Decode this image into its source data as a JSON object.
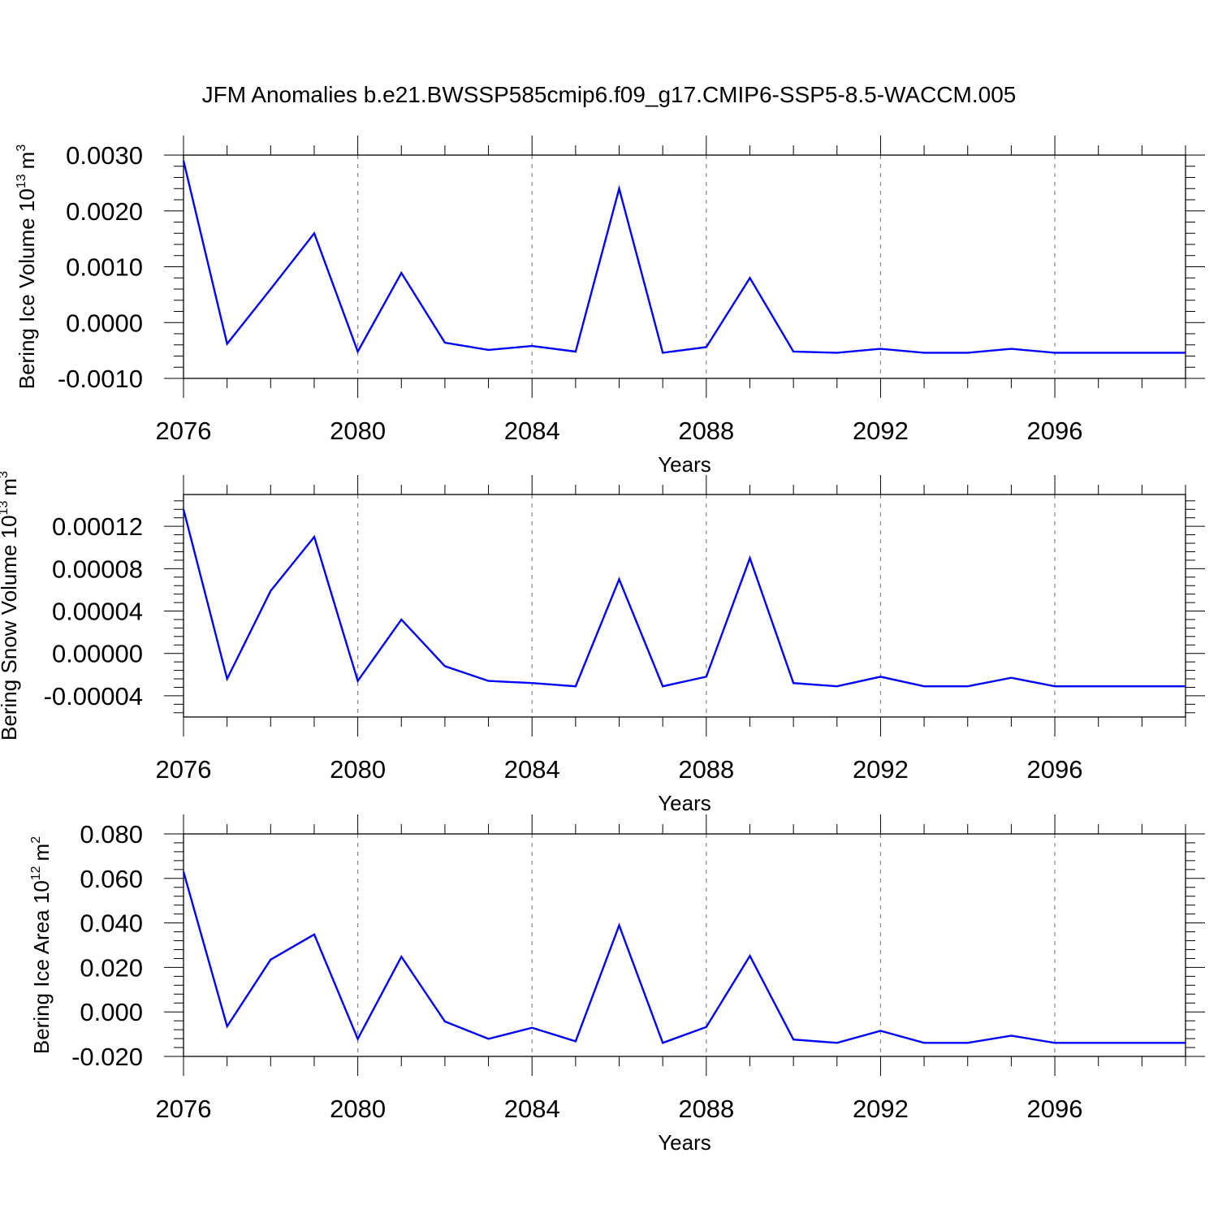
{
  "title": "JFM Anomalies b.e21.BWSSP585cmip6.f09_g17.CMIP6-SSP5-8.5-WACCM.005",
  "colors": {
    "series": "#0000ff",
    "axis": "#000000",
    "grid": "#888888"
  },
  "chart_data": [
    {
      "type": "line",
      "ylabel_main": "Bering Ice Volume 10",
      "ylabel_exp": "13",
      "ylabel_unit": "m",
      "ylabel_unit_exp": "3",
      "xlabel": "Years",
      "xlim": [
        2076,
        2099
      ],
      "ylim": [
        -0.001,
        0.003
      ],
      "x_ticks": [
        2076,
        2080,
        2084,
        2088,
        2092,
        2096
      ],
      "x_tick_labels": [
        "2076",
        "2080",
        "2084",
        "2088",
        "2092",
        "2096"
      ],
      "y_ticks": [
        -0.001,
        0.0,
        0.001,
        0.002,
        0.003
      ],
      "y_tick_labels": [
        "-0.0010",
        "0.0000",
        "0.0010",
        "0.0020",
        "0.0030"
      ],
      "x": [
        2076,
        2077,
        2078,
        2079,
        2080,
        2081,
        2082,
        2083,
        2084,
        2085,
        2086,
        2087,
        2088,
        2089,
        2090,
        2091,
        2092,
        2093,
        2094,
        2095,
        2096,
        2097,
        2098,
        2099
      ],
      "values": [
        0.0029,
        -0.00038,
        0.0006,
        0.0016,
        -0.00052,
        0.00089,
        -0.00036,
        -0.00049,
        -0.00042,
        -0.00052,
        0.0024,
        -0.00054,
        -0.00044,
        0.0008,
        -0.00052,
        -0.00054,
        -0.00047,
        -0.00054,
        -0.00054,
        -0.00047,
        -0.00054,
        -0.00054,
        -0.00054,
        -0.00054
      ]
    },
    {
      "type": "line",
      "ylabel_main": "Bering Snow Volume 10",
      "ylabel_exp": "13",
      "ylabel_unit": "m",
      "ylabel_unit_exp": "3",
      "xlabel": "Years",
      "xlim": [
        2076,
        2099
      ],
      "ylim": [
        -6e-05,
        0.00015
      ],
      "x_ticks": [
        2076,
        2080,
        2084,
        2088,
        2092,
        2096
      ],
      "x_tick_labels": [
        "2076",
        "2080",
        "2084",
        "2088",
        "2092",
        "2096"
      ],
      "y_ticks": [
        -4e-05,
        0.0,
        4e-05,
        8e-05,
        0.00012
      ],
      "y_tick_labels": [
        "-0.00004",
        "0.00000",
        "0.00004",
        "0.00008",
        "0.00012"
      ],
      "x": [
        2076,
        2077,
        2078,
        2079,
        2080,
        2081,
        2082,
        2083,
        2084,
        2085,
        2086,
        2087,
        2088,
        2089,
        2090,
        2091,
        2092,
        2093,
        2094,
        2095,
        2096,
        2097,
        2098,
        2099
      ],
      "values": [
        0.000136,
        -2.4e-05,
        5.9e-05,
        0.00011,
        -2.6e-05,
        3.2e-05,
        -1.2e-05,
        -2.6e-05,
        -2.8e-05,
        -3.1e-05,
        7e-05,
        -3.1e-05,
        -2.2e-05,
        9e-05,
        -2.8e-05,
        -3.1e-05,
        -2.2e-05,
        -3.1e-05,
        -3.1e-05,
        -2.3e-05,
        -3.1e-05,
        -3.1e-05,
        -3.1e-05,
        -3.1e-05
      ]
    },
    {
      "type": "line",
      "ylabel_main": "Bering Ice Area 10",
      "ylabel_exp": "12",
      "ylabel_unit": "m",
      "ylabel_unit_exp": "2",
      "xlabel": "Years",
      "xlim": [
        2076,
        2099
      ],
      "ylim": [
        -0.02,
        0.08
      ],
      "x_ticks": [
        2076,
        2080,
        2084,
        2088,
        2092,
        2096
      ],
      "x_tick_labels": [
        "2076",
        "2080",
        "2084",
        "2088",
        "2092",
        "2096"
      ],
      "y_ticks": [
        -0.02,
        0.0,
        0.02,
        0.04,
        0.06,
        0.08
      ],
      "y_tick_labels": [
        "-0.020",
        "0.000",
        "0.020",
        "0.040",
        "0.060",
        "0.080"
      ],
      "x": [
        2076,
        2077,
        2078,
        2079,
        2080,
        2081,
        2082,
        2083,
        2084,
        2085,
        2086,
        2087,
        2088,
        2089,
        2090,
        2091,
        2092,
        2093,
        2094,
        2095,
        2096,
        2097,
        2098,
        2099
      ],
      "values": [
        0.063,
        -0.0065,
        0.0235,
        0.0348,
        -0.0121,
        0.0248,
        -0.0043,
        -0.0121,
        -0.0071,
        -0.0132,
        0.0389,
        -0.0139,
        -0.0068,
        0.0252,
        -0.0124,
        -0.0139,
        -0.0085,
        -0.0139,
        -0.0139,
        -0.0107,
        -0.0139,
        -0.0139,
        -0.0139,
        -0.0139
      ]
    }
  ]
}
